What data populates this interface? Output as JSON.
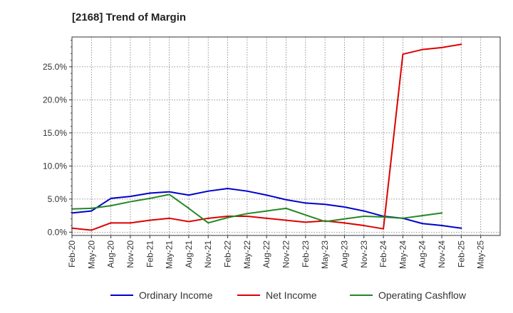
{
  "chart_data": {
    "type": "line",
    "title": "[2168]  Trend of Margin",
    "xlabel": "",
    "ylabel": "",
    "ylim": [
      -0.5,
      29.5
    ],
    "yticks": [
      0,
      5,
      10,
      15,
      20,
      25
    ],
    "ytick_labels": [
      "0.0%",
      "5.0%",
      "10.0%",
      "15.0%",
      "20.0%",
      "25.0%"
    ],
    "categories": [
      "Feb-20",
      "May-20",
      "Aug-20",
      "Nov-20",
      "Feb-21",
      "May-21",
      "Aug-21",
      "Nov-21",
      "Feb-22",
      "May-22",
      "Aug-22",
      "Nov-22",
      "Feb-23",
      "May-23",
      "Aug-23",
      "Nov-23",
      "Feb-24",
      "May-24",
      "Aug-24",
      "Nov-24",
      "Feb-25",
      "May-25"
    ],
    "grid": true,
    "legend_position": "bottom",
    "series": [
      {
        "name": "Ordinary Income",
        "color": "#0000cc",
        "values": [
          2.9,
          3.2,
          5.1,
          5.4,
          5.9,
          6.1,
          5.6,
          6.2,
          6.6,
          6.2,
          5.6,
          4.9,
          4.4,
          4.2,
          3.8,
          3.2,
          2.4,
          2.1,
          1.3,
          1.0,
          0.6,
          null
        ]
      },
      {
        "name": "Net Income",
        "color": "#dd0000",
        "values": [
          0.6,
          0.3,
          1.4,
          1.4,
          1.8,
          2.1,
          1.6,
          2.1,
          2.4,
          2.4,
          2.1,
          1.8,
          1.5,
          1.7,
          1.4,
          1.0,
          0.5,
          26.9,
          27.6,
          27.9,
          28.4,
          null
        ]
      },
      {
        "name": "Operating Cashflow",
        "color": "#228822",
        "values": [
          3.5,
          3.6,
          4.0,
          4.6,
          5.1,
          5.7,
          3.6,
          1.4,
          2.2,
          2.8,
          3.2,
          3.6,
          2.6,
          1.6,
          2.0,
          2.4,
          2.3,
          2.1,
          2.5,
          2.9,
          null,
          null
        ]
      }
    ]
  }
}
